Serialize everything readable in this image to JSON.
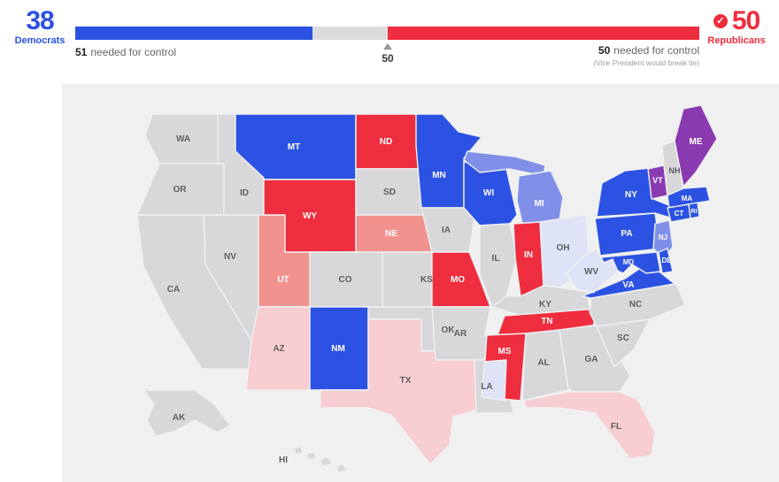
{
  "header": {
    "democrats": {
      "count": "38",
      "label": "Democrats",
      "needed_bold": "51",
      "needed_text": "needed for control"
    },
    "republicans": {
      "count": "50",
      "label": "Republicans",
      "needed_bold": "50",
      "needed_text": "needed for control",
      "tie_note": "(Vice President would break tie)",
      "check_glyph": "✓"
    },
    "majority_marker": "50",
    "bar": {
      "dem_seats": 38,
      "rep_seats": 50,
      "total_seats": 100
    }
  },
  "colors": {
    "dem": "#2b52e2",
    "dem_lead": "#8090e8",
    "dem_light": "#dfe3f7",
    "rep": "#ee2d3e",
    "rep_lead": "#f2928e",
    "rep_light": "#f8ced2",
    "ind": "#8a3ab0",
    "none": "#d8d8da",
    "uncalled_bar": "#dcdcdf"
  },
  "map": {
    "states": [
      {
        "id": "WA",
        "label": "WA",
        "result": "none"
      },
      {
        "id": "OR",
        "label": "OR",
        "result": "none"
      },
      {
        "id": "CA",
        "label": "CA",
        "result": "none"
      },
      {
        "id": "ID",
        "label": "ID",
        "result": "none"
      },
      {
        "id": "NV",
        "label": "NV",
        "result": "none"
      },
      {
        "id": "UT",
        "label": "UT",
        "result": "rep_lead"
      },
      {
        "id": "AZ",
        "label": "AZ",
        "result": "rep_light"
      },
      {
        "id": "MT",
        "label": "MT",
        "result": "dem"
      },
      {
        "id": "WY",
        "label": "WY",
        "result": "rep"
      },
      {
        "id": "CO",
        "label": "CO",
        "result": "none"
      },
      {
        "id": "NM",
        "label": "NM",
        "result": "dem"
      },
      {
        "id": "ND",
        "label": "ND",
        "result": "rep"
      },
      {
        "id": "SD",
        "label": "SD",
        "result": "none"
      },
      {
        "id": "NE",
        "label": "NE",
        "result": "rep_lead"
      },
      {
        "id": "KS",
        "label": "KS",
        "result": "none"
      },
      {
        "id": "OK",
        "label": "OK",
        "result": "none"
      },
      {
        "id": "TX",
        "label": "TX",
        "result": "rep_light"
      },
      {
        "id": "MN",
        "label": "MN",
        "result": "dem"
      },
      {
        "id": "IA",
        "label": "IA",
        "result": "none"
      },
      {
        "id": "MO",
        "label": "MO",
        "result": "rep"
      },
      {
        "id": "AR",
        "label": "AR",
        "result": "none"
      },
      {
        "id": "LA",
        "label": "LA",
        "result": "none"
      },
      {
        "id": "WI",
        "label": "WI",
        "result": "dem"
      },
      {
        "id": "MI",
        "label": "MI",
        "result": "dem_lead"
      },
      {
        "id": "IL",
        "label": "IL",
        "result": "none"
      },
      {
        "id": "IN",
        "label": "IN",
        "result": "rep"
      },
      {
        "id": "OH",
        "label": "OH",
        "result": "dem_light"
      },
      {
        "id": "KY",
        "label": "KY",
        "result": "none"
      },
      {
        "id": "TN",
        "label": "TN",
        "result": "rep"
      },
      {
        "id": "MS",
        "label": "MS",
        "result": "rep"
      },
      {
        "id": "MS-S",
        "label": "",
        "result": "dem_light"
      },
      {
        "id": "AL",
        "label": "AL",
        "result": "none"
      },
      {
        "id": "GA",
        "label": "GA",
        "result": "none"
      },
      {
        "id": "FL",
        "label": "FL",
        "result": "rep_light"
      },
      {
        "id": "SC",
        "label": "SC",
        "result": "none"
      },
      {
        "id": "NC",
        "label": "NC",
        "result": "none"
      },
      {
        "id": "VA",
        "label": "VA",
        "result": "dem"
      },
      {
        "id": "PA",
        "label": "PA",
        "result": "dem"
      },
      {
        "id": "NY",
        "label": "NY",
        "result": "dem"
      },
      {
        "id": "NJ",
        "label": "NJ",
        "result": "dem_lead"
      },
      {
        "id": "MD",
        "label": "MD",
        "result": "dem"
      },
      {
        "id": "DE",
        "label": "DE",
        "result": "dem"
      },
      {
        "id": "WV",
        "label": "WV",
        "result": "dem_light"
      },
      {
        "id": "VT",
        "label": "VT",
        "result": "ind"
      },
      {
        "id": "NH",
        "label": "NH",
        "result": "none"
      },
      {
        "id": "ME",
        "label": "ME",
        "result": "ind"
      },
      {
        "id": "MA",
        "label": "MA",
        "result": "dem"
      },
      {
        "id": "CT",
        "label": "CT",
        "result": "dem"
      },
      {
        "id": "RI",
        "label": "RI",
        "result": "dem"
      },
      {
        "id": "AK",
        "label": "AK",
        "result": "none"
      },
      {
        "id": "HI",
        "label": "HI",
        "result": "none"
      }
    ]
  }
}
